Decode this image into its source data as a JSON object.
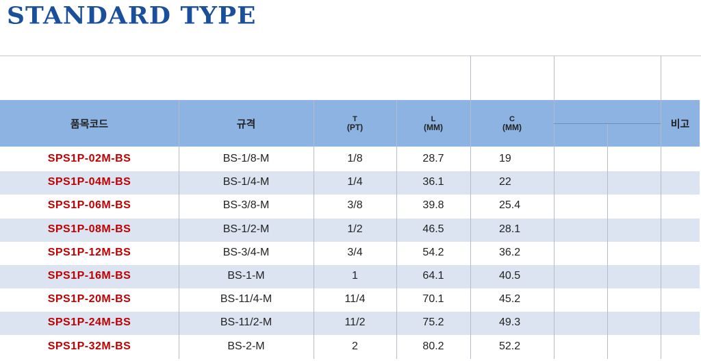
{
  "title": "STANDARD TYPE",
  "header": {
    "code": "품목코드",
    "spec": "규격",
    "t": "T",
    "t_unit": "(PT)",
    "l": "L",
    "l_unit": "(MM)",
    "c": "C",
    "c_unit": "(MM)",
    "note": "비고"
  },
  "rows": [
    {
      "code": "SPS1P-02M-BS",
      "spec": "BS-1/8-M",
      "t": "1/8",
      "l": "28.7",
      "c": "19"
    },
    {
      "code": "SPS1P-04M-BS",
      "spec": "BS-1/4-M",
      "t": "1/4",
      "l": "36.1",
      "c": "22"
    },
    {
      "code": "SPS1P-06M-BS",
      "spec": "BS-3/8-M",
      "t": "3/8",
      "l": "39.8",
      "c": "25.4"
    },
    {
      "code": "SPS1P-08M-BS",
      "spec": "BS-1/2-M",
      "t": "1/2",
      "l": "46.5",
      "c": "28.1"
    },
    {
      "code": "SPS1P-12M-BS",
      "spec": "BS-3/4-M",
      "t": "3/4",
      "l": "54.2",
      "c": "36.2"
    },
    {
      "code": "SPS1P-16M-BS",
      "spec": "BS-1-M",
      "t": "1",
      "l": "64.1",
      "c": "40.5"
    },
    {
      "code": "SPS1P-20M-BS",
      "spec": "BS-11/4-M",
      "t": "11/4",
      "l": "70.1",
      "c": "45.2"
    },
    {
      "code": "SPS1P-24M-BS",
      "spec": "BS-11/2-M",
      "t": "11/2",
      "l": "75.2",
      "c": "49.3"
    },
    {
      "code": "SPS1P-32M-BS",
      "spec": "BS-2-M",
      "t": "2",
      "l": "80.2",
      "c": "52.2"
    }
  ],
  "colors": {
    "title": "#1a4f9c",
    "header_bg": "#8db3e2",
    "stripe": "#dbe4f0",
    "code": "#c00000"
  }
}
